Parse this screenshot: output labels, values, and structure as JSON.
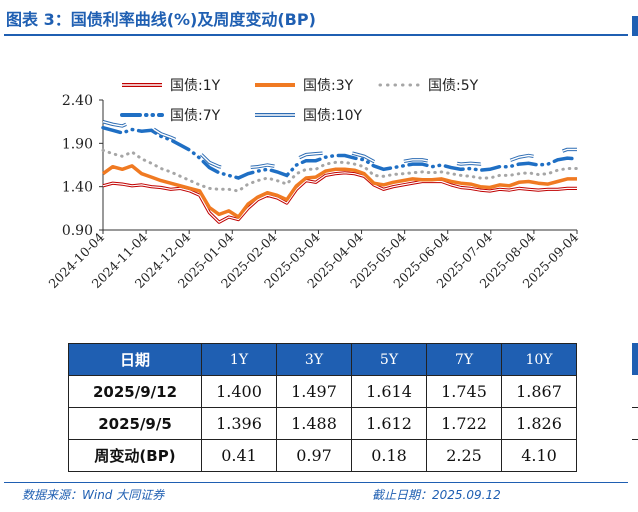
{
  "header": {
    "title": "图表 3：国债利率曲线(%)及周度变动(BP)"
  },
  "chart_data": {
    "type": "line",
    "title": "",
    "xlabel": "",
    "ylabel": "",
    "ylim": [
      0.9,
      2.4
    ],
    "yticks": [
      "0.90",
      "1.40",
      "1.90",
      "2.40"
    ],
    "x_ticks": [
      "2024-10-04",
      "2024-11-04",
      "2024-12-04",
      "2025-01-04",
      "2025-02-04",
      "2025-03-04",
      "2025-04-04",
      "2025-05-04",
      "2025-06-04",
      "2025-07-04",
      "2025-08-04",
      "2025-09-04"
    ],
    "legend_position": "top",
    "series": [
      {
        "name": "国债:1Y",
        "color": "#c00000",
        "style": "double",
        "values": [
          1.41,
          1.44,
          1.43,
          1.41,
          1.42,
          1.4,
          1.39,
          1.37,
          1.38,
          1.35,
          1.3,
          1.1,
          0.99,
          1.05,
          1.02,
          1.15,
          1.25,
          1.3,
          1.27,
          1.21,
          1.37,
          1.47,
          1.45,
          1.53,
          1.55,
          1.56,
          1.55,
          1.52,
          1.42,
          1.37,
          1.4,
          1.42,
          1.44,
          1.46,
          1.46,
          1.46,
          1.42,
          1.39,
          1.38,
          1.36,
          1.35,
          1.37,
          1.36,
          1.38,
          1.37,
          1.36,
          1.37,
          1.37,
          1.38,
          1.38
        ]
      },
      {
        "name": "国债:3Y",
        "color": "#f07a22",
        "style": "thick",
        "values": [
          1.55,
          1.63,
          1.6,
          1.64,
          1.55,
          1.51,
          1.47,
          1.44,
          1.41,
          1.38,
          1.35,
          1.16,
          1.08,
          1.12,
          1.05,
          1.2,
          1.28,
          1.33,
          1.3,
          1.25,
          1.41,
          1.5,
          1.51,
          1.58,
          1.6,
          1.6,
          1.59,
          1.55,
          1.44,
          1.42,
          1.45,
          1.47,
          1.49,
          1.48,
          1.48,
          1.49,
          1.46,
          1.44,
          1.43,
          1.4,
          1.39,
          1.42,
          1.41,
          1.45,
          1.46,
          1.44,
          1.43,
          1.46,
          1.49,
          1.49
        ]
      },
      {
        "name": "国债:5Y",
        "color": "#a6a6a6",
        "style": "dotted",
        "values": [
          1.82,
          1.78,
          1.75,
          1.8,
          1.72,
          1.67,
          1.61,
          1.57,
          1.52,
          1.47,
          1.42,
          1.38,
          1.37,
          1.37,
          1.35,
          1.43,
          1.47,
          1.5,
          1.47,
          1.43,
          1.55,
          1.6,
          1.6,
          1.66,
          1.68,
          1.68,
          1.66,
          1.63,
          1.53,
          1.52,
          1.54,
          1.55,
          1.56,
          1.57,
          1.56,
          1.57,
          1.55,
          1.53,
          1.52,
          1.5,
          1.5,
          1.53,
          1.53,
          1.55,
          1.56,
          1.54,
          1.55,
          1.59,
          1.61,
          1.61
        ]
      },
      {
        "name": "国债:7Y",
        "color": "#1f6fc4",
        "style": "dashed",
        "values": [
          2.08,
          2.05,
          2.02,
          2.06,
          2.04,
          2.05,
          1.98,
          1.94,
          1.88,
          1.82,
          1.73,
          1.62,
          1.56,
          1.53,
          1.5,
          1.55,
          1.58,
          1.6,
          1.57,
          1.53,
          1.65,
          1.7,
          1.7,
          1.74,
          1.76,
          1.76,
          1.73,
          1.71,
          1.64,
          1.6,
          1.62,
          1.64,
          1.66,
          1.66,
          1.63,
          1.65,
          1.62,
          1.6,
          1.61,
          1.59,
          1.6,
          1.63,
          1.63,
          1.66,
          1.67,
          1.65,
          1.66,
          1.71,
          1.73,
          1.72
        ]
      },
      {
        "name": "国债:10Y",
        "color": "#2e6db4",
        "style": "hollow",
        "values": [
          2.15,
          2.12,
          2.1,
          2.15,
          2.09,
          2.08,
          2.01,
          1.97,
          1.92,
          1.86,
          1.79,
          1.68,
          1.63,
          1.61,
          1.6,
          1.62,
          1.63,
          1.65,
          1.63,
          1.6,
          1.72,
          1.77,
          1.78,
          1.79,
          1.8,
          1.81,
          1.78,
          1.75,
          1.69,
          1.66,
          1.68,
          1.69,
          1.71,
          1.71,
          1.69,
          1.71,
          1.68,
          1.66,
          1.67,
          1.66,
          1.68,
          1.71,
          1.7,
          1.74,
          1.76,
          1.74,
          1.75,
          1.79,
          1.83,
          1.83
        ]
      }
    ]
  },
  "table": {
    "headers": [
      "日期",
      "1Y",
      "3Y",
      "5Y",
      "7Y",
      "10Y"
    ],
    "rows": [
      [
        "2025/9/12",
        "1.400",
        "1.497",
        "1.614",
        "1.745",
        "1.867"
      ],
      [
        "2025/9/5",
        "1.396",
        "1.488",
        "1.612",
        "1.722",
        "1.826"
      ],
      [
        "周变动(BP)",
        "0.41",
        "0.97",
        "0.18",
        "2.25",
        "4.10"
      ]
    ]
  },
  "footer": {
    "source": "数据来源：Wind 大同证券",
    "cutoff": "截止日期：2025.09.12"
  }
}
